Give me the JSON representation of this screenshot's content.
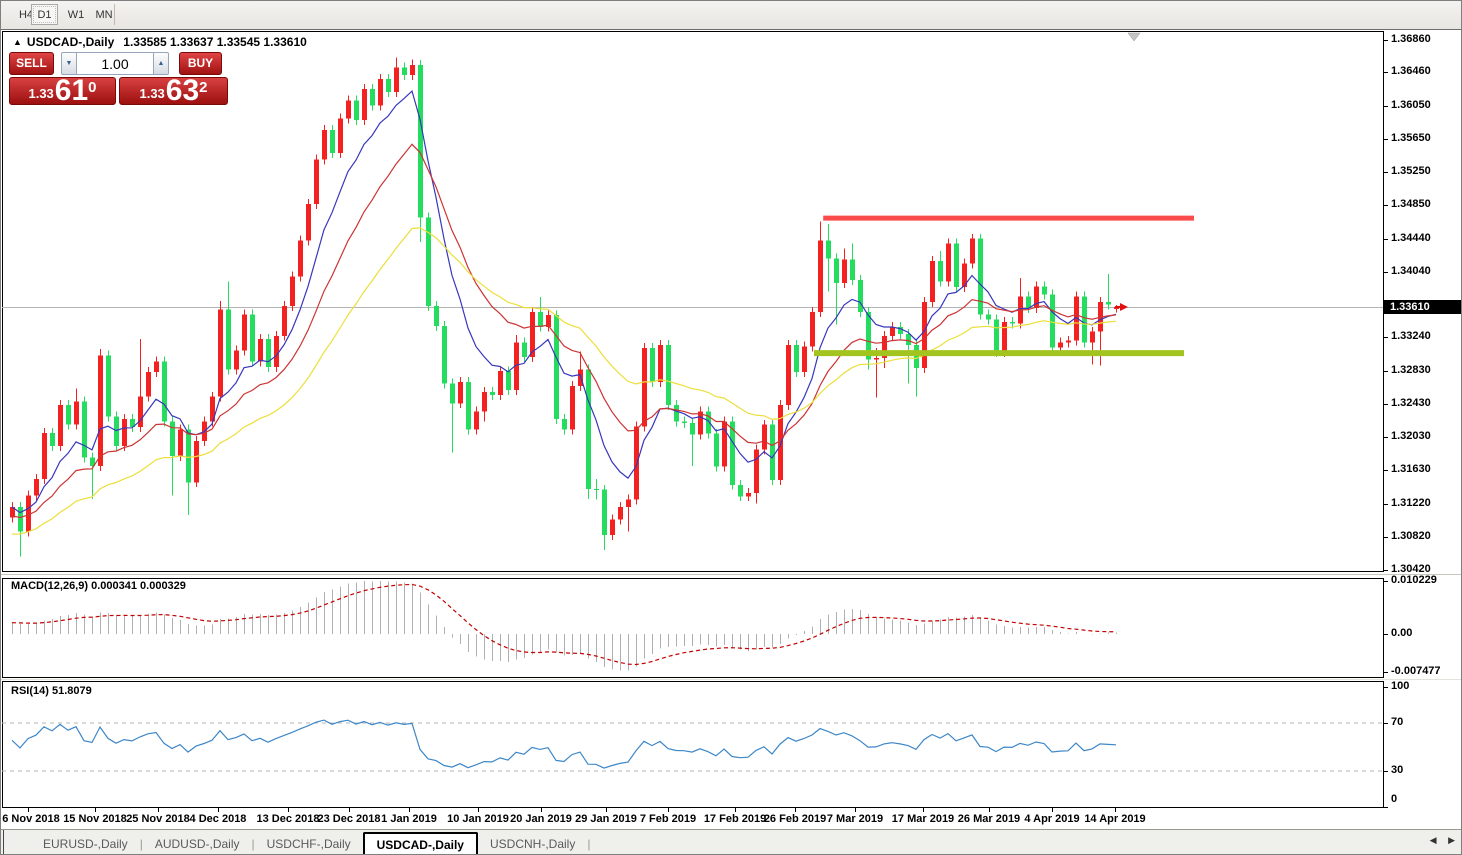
{
  "window": {
    "period_tabs": [
      "H4",
      "D1",
      "W1",
      "MN"
    ],
    "active_period": "D1",
    "bottom_tabs": [
      "EURUSD-,Daily",
      "AUDUSD-,Daily",
      "USDCHF-,Daily",
      "USDCAD-,Daily",
      "USDCNH-,Daily"
    ],
    "active_bottom_tab": "USDCAD-,Daily",
    "tab_scroll_left_icon": "◀",
    "tab_scroll_right_icon": "▶"
  },
  "chart_header": {
    "arrow_icon": "▲",
    "symbol": "USDCAD-,Daily",
    "quote": "1.33585 1.33637 1.33545 1.33610"
  },
  "trade_panel": {
    "sell_label": "SELL",
    "buy_label": "BUY",
    "volume": "1.00",
    "spinner_down_icon": "▼",
    "spinner_up_icon": "▲",
    "sell_price": {
      "base": "1.33",
      "big": "61",
      "sup": "0"
    },
    "buy_price": {
      "base": "1.33",
      "big": "63",
      "sup": "2"
    }
  },
  "indicators": {
    "macd": {
      "label": "MACD(12,26,9)",
      "values": "0.000341 0.000329",
      "params": {
        "fast": 12,
        "slow": 26,
        "signal": 9
      },
      "axis": [
        "0.010229",
        "0.00",
        "-0.007477"
      ]
    },
    "rsi": {
      "label": "RSI(14)",
      "value": "51.8079",
      "period": 14,
      "levels": [
        70,
        30
      ],
      "axis": [
        "100",
        "70",
        "30",
        "0"
      ]
    }
  },
  "chart_data": {
    "type": "candlestick",
    "symbol": "USDCAD",
    "timeframe": "Daily",
    "current_price": "1.33610",
    "ylim": [
      1.3038,
      1.3695
    ],
    "colors": {
      "up": "#f42121",
      "down": "#24dd5f",
      "ma_fast": "#3737bd",
      "ma_mid": "#cd3333",
      "ma_slow": "#ecdf3a",
      "macd_hist": "#b0b0b0",
      "macd_signal": "#c40000",
      "rsi_line": "#3d87c8",
      "resistance": "#fb4a4a",
      "support": "#a3c41e",
      "price_line": "#b4b4b4"
    },
    "price_ticks": [
      "1.36860",
      "1.36460",
      "1.36050",
      "1.35650",
      "1.35250",
      "1.34850",
      "1.34440",
      "1.34040",
      "1.33240",
      "1.32830",
      "1.32430",
      "1.32030",
      "1.31630",
      "1.31220",
      "1.30820",
      "1.30420"
    ],
    "x_ticks": [
      {
        "i": 2,
        "label": "6 Nov 2018"
      },
      {
        "i": 10.4,
        "label": "15 Nov 2018"
      },
      {
        "i": 18.25,
        "label": "25 Nov 2018"
      },
      {
        "i": 25.75,
        "label": "4 Dec 2018"
      },
      {
        "i": 34.5,
        "label": "13 Dec 2018"
      },
      {
        "i": 42.1,
        "label": "23 Dec 2018"
      },
      {
        "i": 49.6,
        "label": "1 Jan 2019"
      },
      {
        "i": 58.25,
        "label": "10 Jan 2019"
      },
      {
        "i": 66.1,
        "label": "20 Jan 2019"
      },
      {
        "i": 74.25,
        "label": "29 Jan 2019"
      },
      {
        "i": 82,
        "label": "7 Feb 2019"
      },
      {
        "i": 90.4,
        "label": "17 Feb 2019"
      },
      {
        "i": 97.9,
        "label": "26 Feb 2019"
      },
      {
        "i": 105.4,
        "label": "7 Mar 2019"
      },
      {
        "i": 113.9,
        "label": "17 Mar 2019"
      },
      {
        "i": 122.1,
        "label": "26 Mar 2019"
      },
      {
        "i": 130,
        "label": "4 Apr 2019"
      },
      {
        "i": 137.9,
        "label": "14 Apr 2019"
      }
    ],
    "moving_averages": [
      {
        "period": 8,
        "color": "#3737bd"
      },
      {
        "period": 17,
        "color": "#cd3333"
      },
      {
        "period": 34,
        "color": "#ecdf3a"
      }
    ],
    "resistance_line": {
      "price": 1.3469,
      "from_i": 101.4,
      "to_i": 147.75
    },
    "support_line": {
      "price": 1.3305,
      "from_i": 100.25,
      "to_i": 146.5
    },
    "candles": [
      [
        1.3105,
        1.3124,
        1.3099,
        1.3118
      ],
      [
        1.3118,
        1.3124,
        1.3058,
        1.3088
      ],
      [
        1.3088,
        1.3138,
        1.3082,
        1.3132
      ],
      [
        1.3132,
        1.3158,
        1.3126,
        1.3152
      ],
      [
        1.3152,
        1.3214,
        1.3146,
        1.3208
      ],
      [
        1.3208,
        1.3214,
        1.3186,
        1.3192
      ],
      [
        1.3192,
        1.3248,
        1.3186,
        1.3242
      ],
      [
        1.3242,
        1.3248,
        1.3212,
        1.3218
      ],
      [
        1.3218,
        1.3262,
        1.3212,
        1.3246
      ],
      [
        1.3246,
        1.3252,
        1.3172,
        1.3178
      ],
      [
        1.3178,
        1.3184,
        1.3128,
        1.3168
      ],
      [
        1.3168,
        1.331,
        1.3162,
        1.3302
      ],
      [
        1.3302,
        1.3308,
        1.3222,
        1.3228
      ],
      [
        1.3228,
        1.3234,
        1.3186,
        1.3192
      ],
      [
        1.3192,
        1.3231,
        1.3186,
        1.3225
      ],
      [
        1.3225,
        1.3231,
        1.3209,
        1.3215
      ],
      [
        1.3215,
        1.3322,
        1.3209,
        1.3252
      ],
      [
        1.3252,
        1.3288,
        1.3246,
        1.3282
      ],
      [
        1.3282,
        1.3301,
        1.3276,
        1.3295
      ],
      [
        1.3295,
        1.3301,
        1.3216,
        1.3222
      ],
      [
        1.3222,
        1.3228,
        1.3132,
        1.318
      ],
      [
        1.318,
        1.3218,
        1.3174,
        1.3212
      ],
      [
        1.3212,
        1.3218,
        1.3108,
        1.3148
      ],
      [
        1.3148,
        1.3204,
        1.3142,
        1.3198
      ],
      [
        1.3198,
        1.3228,
        1.3192,
        1.3222
      ],
      [
        1.3222,
        1.3258,
        1.3216,
        1.3252
      ],
      [
        1.3252,
        1.3368,
        1.3246,
        1.3358
      ],
      [
        1.3358,
        1.3392,
        1.3279,
        1.3285
      ],
      [
        1.3285,
        1.3314,
        1.3279,
        1.3308
      ],
      [
        1.3308,
        1.3358,
        1.3302,
        1.3352
      ],
      [
        1.3352,
        1.3358,
        1.3289,
        1.3295
      ],
      [
        1.3295,
        1.3328,
        1.3289,
        1.3322
      ],
      [
        1.3322,
        1.3328,
        1.3282,
        1.3288
      ],
      [
        1.3288,
        1.3332,
        1.3282,
        1.3326
      ],
      [
        1.3326,
        1.3368,
        1.332,
        1.3362
      ],
      [
        1.3362,
        1.3404,
        1.3356,
        1.3398
      ],
      [
        1.3398,
        1.3448,
        1.3392,
        1.3442
      ],
      [
        1.3442,
        1.3492,
        1.3436,
        1.3486
      ],
      [
        1.3486,
        1.3546,
        1.348,
        1.354
      ],
      [
        1.354,
        1.3582,
        1.3534,
        1.3576
      ],
      [
        1.3576,
        1.3582,
        1.3542,
        1.3548
      ],
      [
        1.3548,
        1.3596,
        1.3542,
        1.359
      ],
      [
        1.359,
        1.3618,
        1.3584,
        1.3612
      ],
      [
        1.3612,
        1.3618,
        1.3582,
        1.3588
      ],
      [
        1.3588,
        1.3632,
        1.3582,
        1.3626
      ],
      [
        1.3626,
        1.3632,
        1.36,
        1.3606
      ],
      [
        1.3606,
        1.3644,
        1.36,
        1.3638
      ],
      [
        1.3638,
        1.3644,
        1.3616,
        1.3622
      ],
      [
        1.3622,
        1.3664,
        1.3616,
        1.3652
      ],
      [
        1.3652,
        1.3658,
        1.3637,
        1.3643
      ],
      [
        1.3643,
        1.3662,
        1.3637,
        1.3655
      ],
      [
        1.3655,
        1.3661,
        1.344,
        1.347
      ],
      [
        1.347,
        1.3476,
        1.3356,
        1.3362
      ],
      [
        1.3362,
        1.3368,
        1.3332,
        1.3338
      ],
      [
        1.3338,
        1.3344,
        1.3262,
        1.3268
      ],
      [
        1.3268,
        1.3274,
        1.3184,
        1.3244
      ],
      [
        1.3244,
        1.3276,
        1.3238,
        1.327
      ],
      [
        1.327,
        1.3276,
        1.3206,
        1.3212
      ],
      [
        1.3212,
        1.324,
        1.3206,
        1.3234
      ],
      [
        1.3234,
        1.3264,
        1.3222,
        1.3258
      ],
      [
        1.3258,
        1.3264,
        1.3248,
        1.3254
      ],
      [
        1.3254,
        1.3289,
        1.3248,
        1.3283
      ],
      [
        1.3283,
        1.3289,
        1.3254,
        1.326
      ],
      [
        1.326,
        1.3327,
        1.3254,
        1.3318
      ],
      [
        1.3318,
        1.3324,
        1.3294,
        1.33
      ],
      [
        1.33,
        1.3361,
        1.3294,
        1.3355
      ],
      [
        1.3355,
        1.3373,
        1.3331,
        1.3337
      ],
      [
        1.3337,
        1.3357,
        1.3331,
        1.3351
      ],
      [
        1.3351,
        1.3357,
        1.3219,
        1.3225
      ],
      [
        1.3225,
        1.3231,
        1.3206,
        1.3212
      ],
      [
        1.3212,
        1.3271,
        1.3206,
        1.3265
      ],
      [
        1.3265,
        1.3307,
        1.3259,
        1.3285
      ],
      [
        1.3285,
        1.3291,
        1.3128,
        1.314
      ],
      [
        1.314,
        1.3152,
        1.3127,
        1.3139
      ],
      [
        1.3139,
        1.3145,
        1.3066,
        1.3084
      ],
      [
        1.3084,
        1.3109,
        1.3078,
        1.3103
      ],
      [
        1.3103,
        1.3124,
        1.3097,
        1.3118
      ],
      [
        1.3118,
        1.3133,
        1.3088,
        1.3127
      ],
      [
        1.3127,
        1.3222,
        1.3121,
        1.3216
      ],
      [
        1.3216,
        1.3317,
        1.321,
        1.3311
      ],
      [
        1.3311,
        1.3317,
        1.3264,
        1.327
      ],
      [
        1.327,
        1.3321,
        1.3264,
        1.3315
      ],
      [
        1.3315,
        1.3321,
        1.3236,
        1.3242
      ],
      [
        1.3242,
        1.3248,
        1.3216,
        1.3222
      ],
      [
        1.3222,
        1.3228,
        1.3214,
        1.322
      ],
      [
        1.322,
        1.3226,
        1.3168,
        1.3206
      ],
      [
        1.3206,
        1.324,
        1.32,
        1.3234
      ],
      [
        1.3234,
        1.324,
        1.3201,
        1.3207
      ],
      [
        1.3207,
        1.3213,
        1.3161,
        1.3167
      ],
      [
        1.3167,
        1.3228,
        1.3161,
        1.3222
      ],
      [
        1.3222,
        1.3228,
        1.3139,
        1.3145
      ],
      [
        1.3145,
        1.3151,
        1.3125,
        1.3131
      ],
      [
        1.3131,
        1.3141,
        1.3125,
        1.3135
      ],
      [
        1.3135,
        1.3194,
        1.3122,
        1.3188
      ],
      [
        1.3188,
        1.3224,
        1.3182,
        1.3218
      ],
      [
        1.3218,
        1.3224,
        1.3145,
        1.3151
      ],
      [
        1.3151,
        1.3248,
        1.3145,
        1.3242
      ],
      [
        1.3242,
        1.3321,
        1.3236,
        1.3315
      ],
      [
        1.3315,
        1.3321,
        1.3276,
        1.3282
      ],
      [
        1.3282,
        1.3319,
        1.3276,
        1.3313
      ],
      [
        1.3313,
        1.3361,
        1.3307,
        1.3355
      ],
      [
        1.3355,
        1.3465,
        1.3349,
        1.3442
      ],
      [
        1.3442,
        1.3462,
        1.338,
        1.342
      ],
      [
        1.342,
        1.3426,
        1.334,
        1.339
      ],
      [
        1.339,
        1.3432,
        1.3384,
        1.3419
      ],
      [
        1.3419,
        1.3438,
        1.3388,
        1.3394
      ],
      [
        1.3394,
        1.34,
        1.3349,
        1.3355
      ],
      [
        1.3355,
        1.3361,
        1.3285,
        1.3297
      ],
      [
        1.3297,
        1.3311,
        1.3251,
        1.3299
      ],
      [
        1.3299,
        1.3332,
        1.3287,
        1.3326
      ],
      [
        1.3326,
        1.3343,
        1.332,
        1.3337
      ],
      [
        1.3337,
        1.3343,
        1.3322,
        1.3328
      ],
      [
        1.3328,
        1.3334,
        1.3268,
        1.3315
      ],
      [
        1.3315,
        1.3321,
        1.3252,
        1.3287
      ],
      [
        1.3287,
        1.3373,
        1.3281,
        1.3367
      ],
      [
        1.3367,
        1.3423,
        1.3361,
        1.3417
      ],
      [
        1.3417,
        1.3429,
        1.3386,
        1.3392
      ],
      [
        1.3392,
        1.3444,
        1.3386,
        1.3438
      ],
      [
        1.3438,
        1.3444,
        1.3379,
        1.3385
      ],
      [
        1.3385,
        1.342,
        1.3379,
        1.3414
      ],
      [
        1.3414,
        1.345,
        1.3408,
        1.3444
      ],
      [
        1.3444,
        1.345,
        1.3346,
        1.3352
      ],
      [
        1.3352,
        1.3358,
        1.334,
        1.3346
      ],
      [
        1.3346,
        1.3352,
        1.33,
        1.3306
      ],
      [
        1.3306,
        1.3349,
        1.33,
        1.3343
      ],
      [
        1.3343,
        1.3349,
        1.3335,
        1.3341
      ],
      [
        1.3341,
        1.3396,
        1.3335,
        1.3374
      ],
      [
        1.3374,
        1.338,
        1.3354,
        1.336
      ],
      [
        1.336,
        1.3392,
        1.3354,
        1.3386
      ],
      [
        1.3386,
        1.3392,
        1.337,
        1.3376
      ],
      [
        1.3376,
        1.3382,
        1.3306,
        1.3312
      ],
      [
        1.3312,
        1.3324,
        1.3306,
        1.3318
      ],
      [
        1.3318,
        1.3326,
        1.3312,
        1.332
      ],
      [
        1.332,
        1.338,
        1.3314,
        1.3374
      ],
      [
        1.3374,
        1.338,
        1.3312,
        1.3318
      ],
      [
        1.3318,
        1.3337,
        1.3291,
        1.3331
      ],
      [
        1.3331,
        1.3373,
        1.329,
        1.3367
      ],
      [
        1.3367,
        1.3401,
        1.3358,
        1.3364
      ],
      [
        1.33585,
        1.33637,
        1.33545,
        1.3361
      ]
    ]
  }
}
